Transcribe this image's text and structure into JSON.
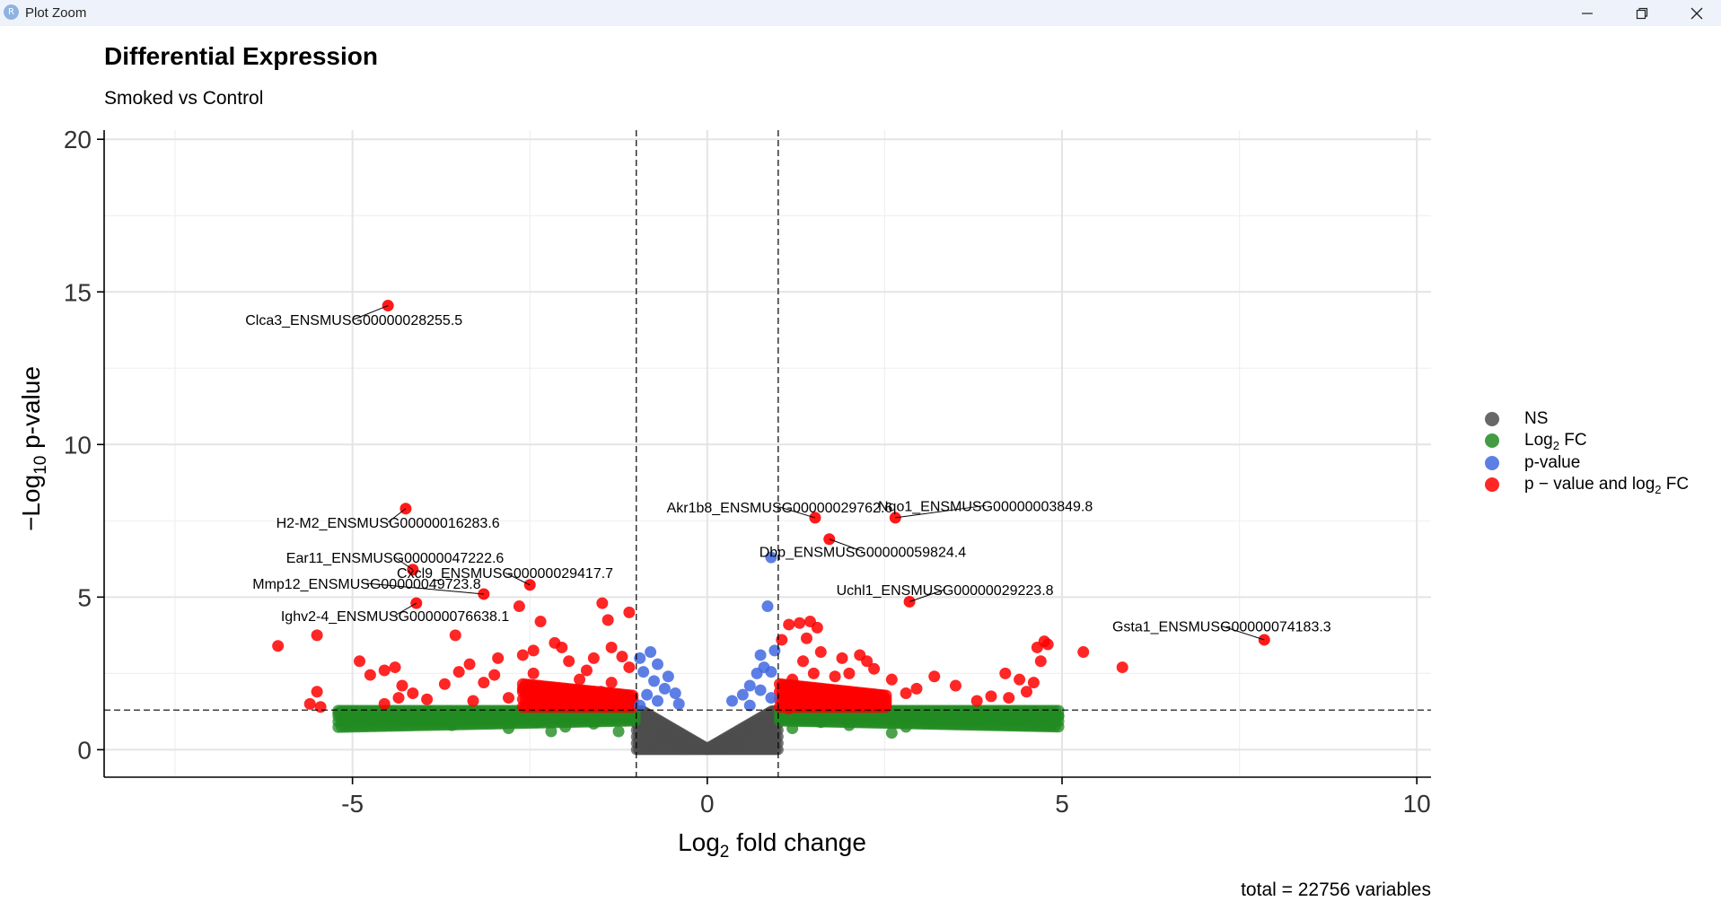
{
  "window": {
    "title": "Plot Zoom",
    "app_icon": "R",
    "buttons": [
      "minimize-icon",
      "maximize-icon",
      "close-icon"
    ]
  },
  "chart_data": {
    "type": "scatter",
    "title": "Differential Expression",
    "subtitle": "Smoked vs Control",
    "xlabel": {
      "main": "Log",
      "sub": "2",
      "rest": " fold change"
    },
    "ylabel": {
      "pre": "−Log",
      "sub": "10",
      "rest": " p-value"
    },
    "xlim": [
      -8.5,
      10.2
    ],
    "ylim": [
      -0.9,
      20.3
    ],
    "xticks": [
      -5,
      0,
      5,
      10
    ],
    "yticks": [
      0,
      5,
      10,
      15,
      20
    ],
    "xtick_labels": [
      "-5",
      "0",
      "5",
      "10"
    ],
    "ytick_labels": [
      "0",
      "5",
      "10",
      "15",
      "20"
    ],
    "grid": true,
    "fc_cutoff": 1,
    "p_cutoff_neglog10": 1.3,
    "caption": "total = 22756 variables",
    "legend_position": "right",
    "colors": {
      "NS": "#4d4d4d",
      "Log2FC": "#228b22",
      "pvalue": "#4169e1",
      "both": "#ff0000"
    },
    "legend": [
      {
        "key": "NS",
        "text": "NS",
        "color": "#4d4d4d"
      },
      {
        "key": "Log2FC",
        "text": "Log",
        "sub": "2",
        "rest": " FC",
        "color": "#228b22"
      },
      {
        "key": "pvalue",
        "text": "p-value",
        "color": "#4169e1"
      },
      {
        "key": "both",
        "text": "p − value and log",
        "sub": "2",
        "rest": " FC",
        "color": "#ff0000"
      }
    ],
    "labeled_points": [
      {
        "label": "Clca3_ENSMUSG00000028255.5",
        "x": -4.5,
        "y": 14.55,
        "lx": -4.98,
        "ly": 14.1
      },
      {
        "label": "H2-M2_ENSMUSG00000016283.6",
        "x": -4.25,
        "y": 7.9,
        "lx": -4.5,
        "ly": 7.45
      },
      {
        "label": "Ear11_ENSMUSG00000047222.6",
        "x": -4.15,
        "y": 5.9,
        "lx": -4.4,
        "ly": 6.3
      },
      {
        "label": "Mmp12_ENSMUSG00000049723.8",
        "x": -3.15,
        "y": 5.1,
        "lx": -4.8,
        "ly": 5.45
      },
      {
        "label": "Ighv2-4_ENSMUSG00000076638.1",
        "x": -4.1,
        "y": 4.8,
        "lx": -4.4,
        "ly": 4.4
      },
      {
        "label": "Cxcl9_ENSMUSG00000029417.7",
        "x": -2.5,
        "y": 5.4,
        "lx": -2.85,
        "ly": 5.8
      },
      {
        "label": "Akr1b8_ENSMUSG00000029762.6",
        "x": 1.52,
        "y": 7.6,
        "lx": 1.02,
        "ly": 7.95
      },
      {
        "label": "Nqo1_ENSMUSG00000003849.8",
        "x": 2.65,
        "y": 7.6,
        "lx": 3.92,
        "ly": 8.0
      },
      {
        "label": "Dbp_ENSMUSG00000059824.4",
        "x": 1.72,
        "y": 6.9,
        "lx": 2.19,
        "ly": 6.5
      },
      {
        "label": "Uchl1_ENSMUSG00000029223.8",
        "x": 2.85,
        "y": 4.85,
        "lx": 3.35,
        "ly": 5.25
      },
      {
        "label": "Gsta1_ENSMUSG00000074183.3",
        "x": 7.85,
        "y": 3.6,
        "lx": 7.25,
        "ly": 4.05
      }
    ],
    "points": {
      "both": [
        [
          -6.05,
          3.4
        ],
        [
          -5.5,
          3.75
        ],
        [
          -5.5,
          1.9
        ],
        [
          -5.6,
          1.5
        ],
        [
          -5.45,
          1.4
        ],
        [
          -4.9,
          2.9
        ],
        [
          -4.75,
          2.45
        ],
        [
          -4.55,
          2.6
        ],
        [
          -4.4,
          2.7
        ],
        [
          -4.3,
          2.1
        ],
        [
          -4.55,
          1.5
        ],
        [
          -4.35,
          1.7
        ],
        [
          -4.15,
          1.85
        ],
        [
          -3.95,
          1.65
        ],
        [
          -3.7,
          2.15
        ],
        [
          -3.5,
          2.55
        ],
        [
          -3.55,
          3.75
        ],
        [
          -3.35,
          2.8
        ],
        [
          -3.15,
          2.2
        ],
        [
          -3.0,
          2.45
        ],
        [
          -2.95,
          3.0
        ],
        [
          -2.6,
          3.1
        ],
        [
          -2.65,
          4.7
        ],
        [
          -2.45,
          3.25
        ],
        [
          -2.35,
          4.2
        ],
        [
          -2.15,
          3.5
        ],
        [
          -2.05,
          3.35
        ],
        [
          -1.48,
          4.8
        ],
        [
          -1.4,
          4.25
        ],
        [
          -1.1,
          4.5
        ],
        [
          -1.35,
          3.35
        ],
        [
          -1.2,
          3.05
        ],
        [
          -1.1,
          2.7
        ],
        [
          -1.35,
          2.2
        ],
        [
          -2.8,
          1.7
        ],
        [
          -2.6,
          2.0
        ],
        [
          -2.2,
          1.85
        ],
        [
          -1.8,
          2.3
        ],
        [
          -1.5,
          1.9
        ],
        [
          -1.7,
          2.6
        ],
        [
          -2.45,
          2.5
        ],
        [
          -1.25,
          1.55
        ],
        [
          -3.3,
          1.6
        ],
        [
          -1.95,
          2.9
        ],
        [
          -1.6,
          3.0
        ],
        [
          1.05,
          3.6
        ],
        [
          1.15,
          4.1
        ],
        [
          1.3,
          4.15
        ],
        [
          1.45,
          4.2
        ],
        [
          1.55,
          4.0
        ],
        [
          1.4,
          3.65
        ],
        [
          1.6,
          3.2
        ],
        [
          1.35,
          2.9
        ],
        [
          1.5,
          2.5
        ],
        [
          1.2,
          2.3
        ],
        [
          1.1,
          2.0
        ],
        [
          1.7,
          1.95
        ],
        [
          1.8,
          2.4
        ],
        [
          2.0,
          2.5
        ],
        [
          2.25,
          2.9
        ],
        [
          2.35,
          2.65
        ],
        [
          1.9,
          3.0
        ],
        [
          2.15,
          3.1
        ],
        [
          1.25,
          1.7
        ],
        [
          1.5,
          1.5
        ],
        [
          2.6,
          2.3
        ],
        [
          2.95,
          2.0
        ],
        [
          3.2,
          2.4
        ],
        [
          3.5,
          2.1
        ],
        [
          3.8,
          1.6
        ],
        [
          4.0,
          1.75
        ],
        [
          4.2,
          2.5
        ],
        [
          4.25,
          1.7
        ],
        [
          4.4,
          2.3
        ],
        [
          4.5,
          1.9
        ],
        [
          4.6,
          2.2
        ],
        [
          4.65,
          3.35
        ],
        [
          4.75,
          3.55
        ],
        [
          4.8,
          3.45
        ],
        [
          4.7,
          2.9
        ],
        [
          5.3,
          3.2
        ],
        [
          5.85,
          2.7
        ],
        [
          2.8,
          1.85
        ],
        [
          1.15,
          1.35
        ]
      ],
      "pvalue": [
        [
          -0.8,
          3.2
        ],
        [
          -0.95,
          3.0
        ],
        [
          -0.7,
          2.8
        ],
        [
          -0.55,
          2.4
        ],
        [
          -0.75,
          2.25
        ],
        [
          -0.9,
          2.55
        ],
        [
          -0.6,
          2.0
        ],
        [
          -0.45,
          1.85
        ],
        [
          -0.85,
          1.8
        ],
        [
          -0.7,
          1.6
        ],
        [
          -0.4,
          1.5
        ],
        [
          -0.95,
          1.45
        ],
        [
          0.85,
          4.7
        ],
        [
          0.9,
          6.3
        ],
        [
          0.75,
          3.1
        ],
        [
          0.8,
          2.7
        ],
        [
          0.7,
          2.5
        ],
        [
          0.9,
          2.55
        ],
        [
          0.6,
          2.1
        ],
        [
          0.5,
          1.8
        ],
        [
          0.75,
          1.95
        ],
        [
          0.35,
          1.6
        ],
        [
          0.9,
          1.7
        ],
        [
          0.6,
          1.45
        ],
        [
          0.95,
          3.25
        ]
      ],
      "log2fc": [
        [
          -5.2,
          1.2
        ],
        [
          -4.8,
          1.0
        ],
        [
          -4.45,
          0.9
        ],
        [
          -4.0,
          1.05
        ],
        [
          -3.6,
          0.8
        ],
        [
          -3.2,
          0.95
        ],
        [
          -2.8,
          0.7
        ],
        [
          -2.4,
          0.9
        ],
        [
          -2.0,
          0.75
        ],
        [
          -1.6,
          0.85
        ],
        [
          -1.25,
          0.6
        ],
        [
          -3.9,
          1.25
        ],
        [
          -2.55,
          1.2
        ],
        [
          -1.75,
          1.25
        ],
        [
          -5.1,
          1.15
        ],
        [
          -4.9,
          1.1
        ],
        [
          -3.5,
          1.15
        ],
        [
          -1.2,
          1.2
        ],
        [
          -2.2,
          0.6
        ],
        [
          1.2,
          0.7
        ],
        [
          1.6,
          0.9
        ],
        [
          2.0,
          0.8
        ],
        [
          2.4,
          1.0
        ],
        [
          2.8,
          0.75
        ],
        [
          3.2,
          0.9
        ],
        [
          3.6,
          1.0
        ],
        [
          4.0,
          0.85
        ],
        [
          4.3,
          1.05
        ],
        [
          4.6,
          1.25
        ],
        [
          4.45,
          1.1
        ],
        [
          1.4,
          1.2
        ],
        [
          2.2,
          1.25
        ],
        [
          3.0,
          1.15
        ],
        [
          3.8,
          1.2
        ],
        [
          4.95,
          1.1
        ],
        [
          4.1,
          1.25
        ],
        [
          2.6,
          0.55
        ]
      ]
    }
  }
}
